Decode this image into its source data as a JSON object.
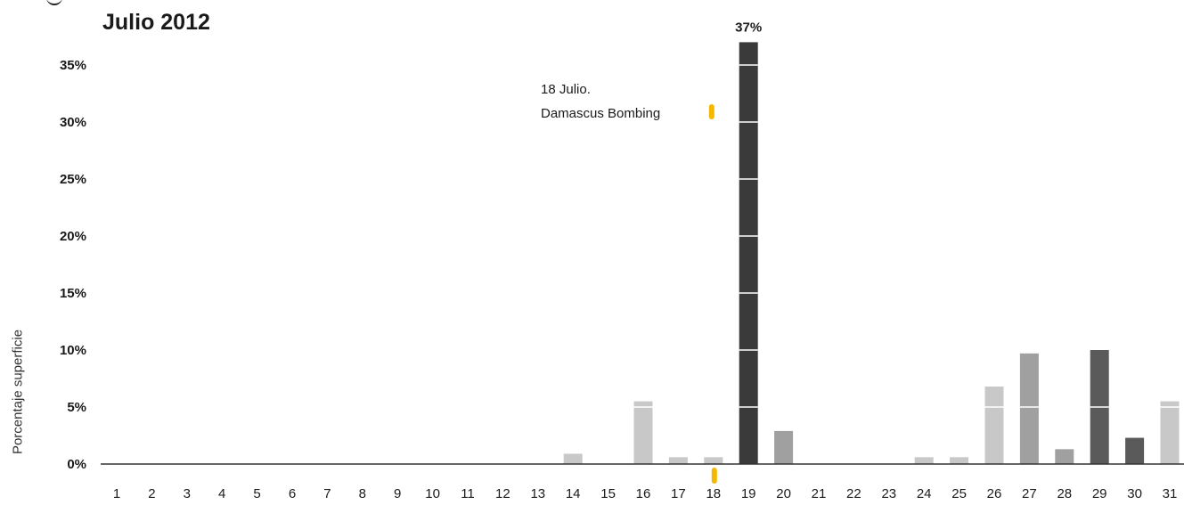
{
  "chart_data": {
    "type": "bar",
    "title": "Julio 2012",
    "ylabel": "Porcentaje superficie",
    "xlabel": "",
    "ylim": [
      0,
      37
    ],
    "y_ticks": [
      "0%",
      "5%",
      "10%",
      "15%",
      "20%",
      "25%",
      "30%",
      "35%"
    ],
    "y_tick_values": [
      0,
      5,
      10,
      15,
      20,
      25,
      30,
      35
    ],
    "categories": [
      "1",
      "2",
      "3",
      "4",
      "5",
      "6",
      "7",
      "8",
      "9",
      "10",
      "11",
      "12",
      "13",
      "14",
      "15",
      "16",
      "17",
      "18",
      "19",
      "20",
      "21",
      "22",
      "23",
      "24",
      "25",
      "26",
      "27",
      "28",
      "29",
      "30",
      "31"
    ],
    "values": [
      0,
      0,
      0,
      0,
      0,
      0,
      0,
      0,
      0,
      0,
      0,
      0,
      0,
      0.9,
      0,
      5.5,
      0.6,
      0.6,
      37,
      2.9,
      0,
      0,
      0,
      0.6,
      0.6,
      6.8,
      9.7,
      1.3,
      10,
      2.3,
      5.5
    ],
    "bar_colors": [
      "#c8c8c8",
      "#c8c8c8",
      "#c8c8c8",
      "#c8c8c8",
      "#c8c8c8",
      "#c8c8c8",
      "#c8c8c8",
      "#c8c8c8",
      "#c8c8c8",
      "#c8c8c8",
      "#c8c8c8",
      "#c8c8c8",
      "#c8c8c8",
      "#c8c8c8",
      "#c8c8c8",
      "#c8c8c8",
      "#c8c8c8",
      "#c8c8c8",
      "#3a3a3a",
      "#a0a0a0",
      "#c8c8c8",
      "#c8c8c8",
      "#c8c8c8",
      "#c8c8c8",
      "#c8c8c8",
      "#c8c8c8",
      "#a0a0a0",
      "#a0a0a0",
      "#5a5a5a",
      "#5a5a5a",
      "#c8c8c8"
    ],
    "peak_label": "37%",
    "annotation": {
      "category": "18",
      "line1": "18 Julio.",
      "line2": "Damascus Bombing",
      "marker_color": "#f5b800"
    },
    "grid": false,
    "axis_color": "#333333"
  }
}
